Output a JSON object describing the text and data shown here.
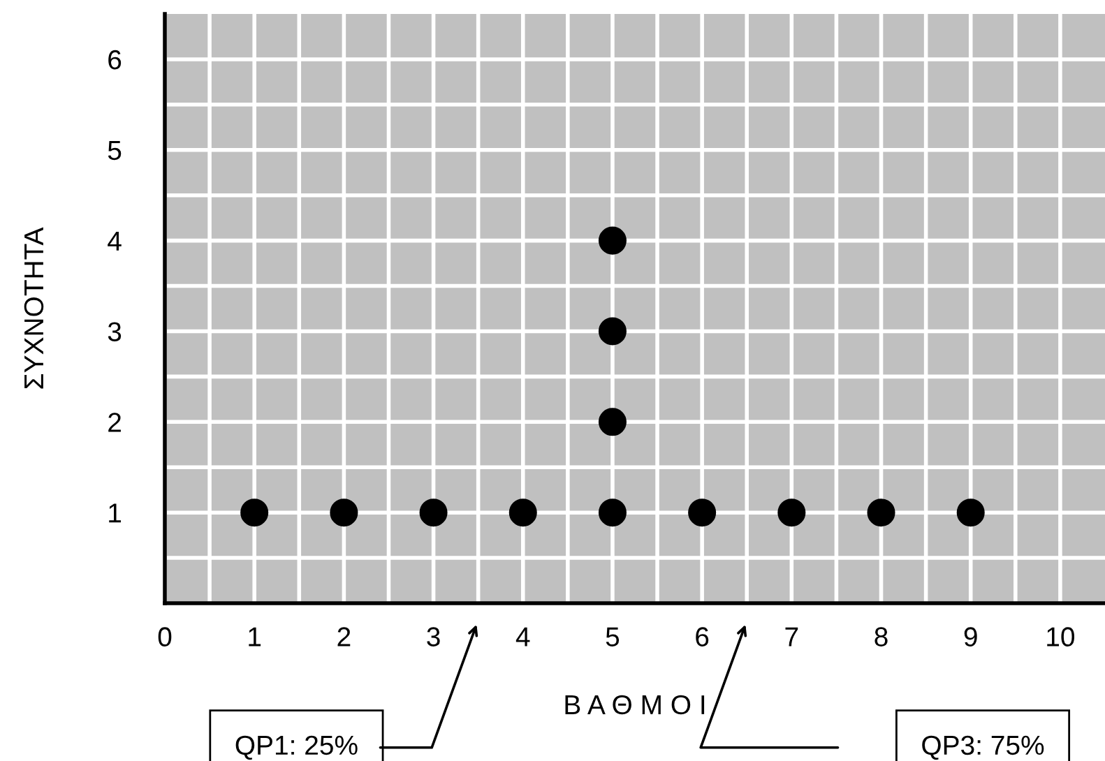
{
  "chart_data": {
    "type": "scatter",
    "xlabel": "Β Α Θ Μ Ο Ι",
    "ylabel": "ΣΥΧΝΟΤΗΤΑ",
    "series": [
      {
        "color": "#000000",
        "x": [
          1,
          2,
          3,
          4,
          5,
          6,
          7,
          8,
          9,
          5,
          5,
          5
        ],
        "values": [
          1,
          1,
          1,
          1,
          1,
          1,
          1,
          1,
          1,
          2,
          3,
          4
        ]
      }
    ],
    "marker": "circle",
    "xlim": [
      0,
      10.5
    ],
    "ylim": [
      0,
      6.5
    ],
    "xticks": [
      0,
      {
        "value": 0.5,
        "label": null
      },
      1,
      {
        "value": 1.5,
        "label": null
      },
      2,
      {
        "value": 2.5,
        "label": null
      },
      3,
      {
        "value": 3.5,
        "label": null
      },
      4,
      {
        "value": 4.5,
        "label": null
      },
      5,
      {
        "value": 5.5,
        "label": null
      },
      6,
      {
        "value": 6.5,
        "label": null
      },
      7,
      {
        "value": 7.5,
        "label": null
      },
      8,
      {
        "value": 8.5,
        "label": null
      },
      9,
      {
        "value": 9.5,
        "label": null
      },
      10
    ],
    "yticks": [
      {
        "value": 0.5,
        "label": null
      },
      1,
      {
        "value": 1.5,
        "label": null
      },
      2,
      {
        "value": 2.5,
        "label": null
      },
      3,
      {
        "value": 3.5,
        "label": null
      },
      4,
      {
        "value": 4.5,
        "label": null
      },
      5,
      {
        "value": 5.5,
        "label": null
      },
      6
    ],
    "grid": true,
    "annotations": [
      "QP1: 25%",
      "QP3: 75%"
    ]
  }
}
